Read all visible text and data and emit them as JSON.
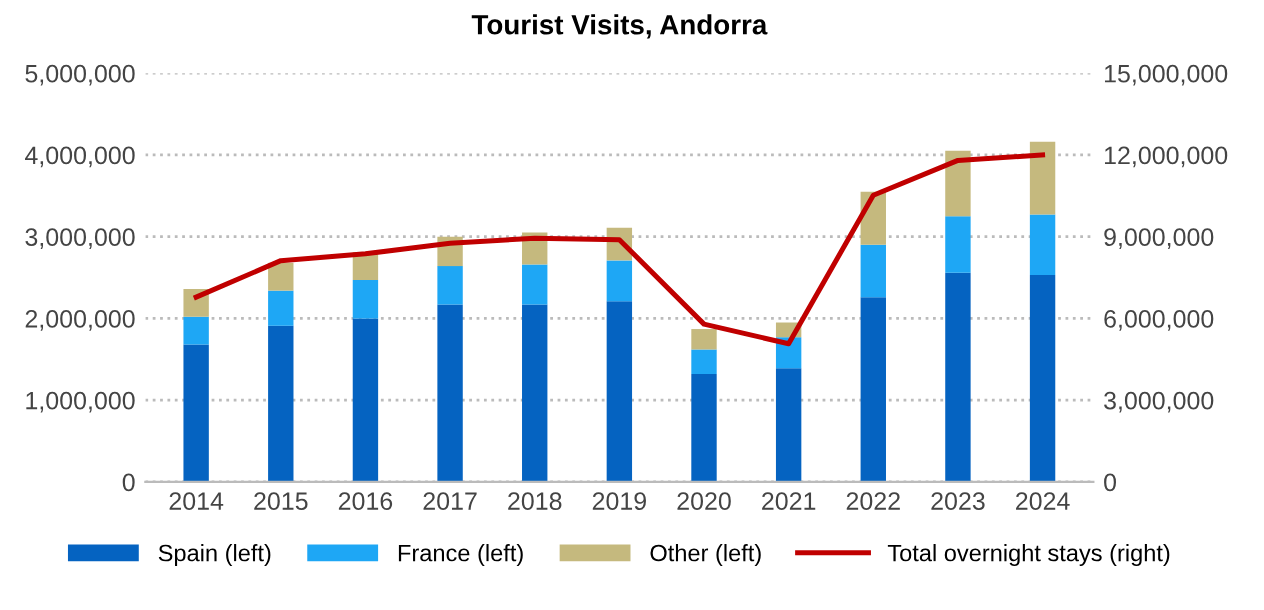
{
  "chart_data": {
    "type": "bar",
    "title": "Tourist Visits, Andorra",
    "stacked": true,
    "categories": [
      "2014",
      "2015",
      "2016",
      "2017",
      "2018",
      "2019",
      "2020",
      "2021",
      "2022",
      "2023",
      "2024"
    ],
    "series": [
      {
        "name": "Spain (left)",
        "color": "#0563c1",
        "values": [
          1680000,
          1910000,
          2000000,
          2170000,
          2170000,
          2210000,
          1320000,
          1390000,
          2260000,
          2560000,
          2530000
        ]
      },
      {
        "name": "France (left)",
        "color": "#1ea7f5",
        "values": [
          340000,
          430000,
          470000,
          470000,
          490000,
          500000,
          300000,
          380000,
          640000,
          690000,
          740000
        ]
      },
      {
        "name": "Other (left)",
        "color": "#c5b97e",
        "values": [
          340000,
          340000,
          340000,
          360000,
          390000,
          400000,
          250000,
          180000,
          650000,
          800000,
          890000
        ]
      },
      {
        "name": "Total overnight stays (right)",
        "type": "line",
        "axis": "y2",
        "color": "#c00000",
        "values": [
          6780000,
          8120000,
          8370000,
          8760000,
          8940000,
          8890000,
          5790000,
          5070000,
          10520000,
          11800000,
          12000000
        ]
      }
    ],
    "ylim": [
      0,
      5000000
    ],
    "yticks": [
      {
        "value": 0,
        "label": "0"
      },
      {
        "value": 1000000,
        "label": "1,000,000"
      },
      {
        "value": 2000000,
        "label": "2,000,000"
      },
      {
        "value": 3000000,
        "label": "3,000,000"
      },
      {
        "value": 4000000,
        "label": "4,000,000"
      },
      {
        "value": 5000000,
        "label": "5,000,000"
      }
    ],
    "y2lim": [
      0,
      15000000
    ],
    "y2ticks": [
      {
        "value": 0,
        "label": "0"
      },
      {
        "value": 3000000,
        "label": "3,000,000"
      },
      {
        "value": 6000000,
        "label": "6,000,000"
      },
      {
        "value": 9000000,
        "label": "9,000,000"
      },
      {
        "value": 12000000,
        "label": "12,000,000"
      },
      {
        "value": 15000000,
        "label": "15,000,000"
      }
    ],
    "grid": "y",
    "legend": "bottom",
    "marker": "none",
    "line_style": "solid"
  }
}
